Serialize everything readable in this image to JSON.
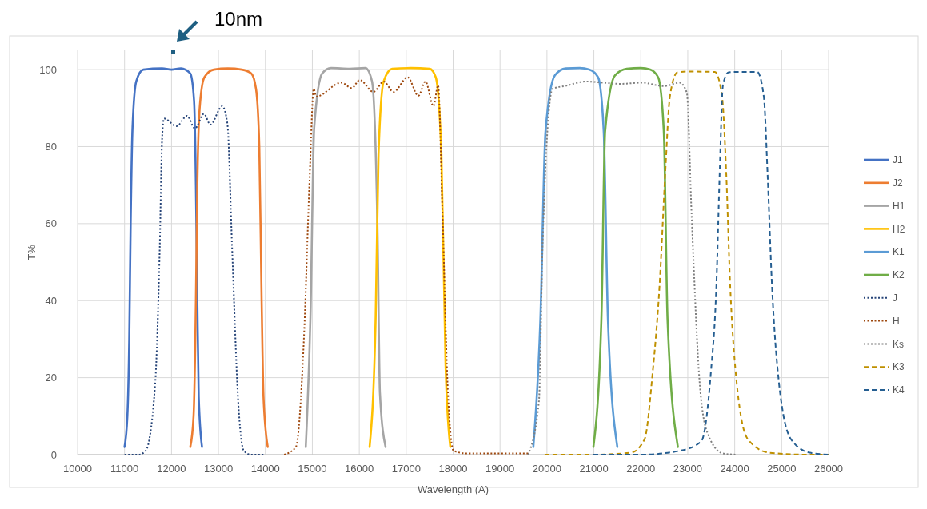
{
  "chart_data": {
    "type": "line",
    "xlabel": "Wavelength (A)",
    "ylabel": "T%",
    "annotations": [
      "10nm"
    ],
    "xlim": [
      10000,
      26000
    ],
    "xticks": [
      10000,
      11000,
      12000,
      13000,
      14000,
      15000,
      16000,
      17000,
      18000,
      19000,
      20000,
      21000,
      22000,
      23000,
      24000,
      25000,
      26000
    ],
    "ylim": [
      0,
      105
    ],
    "yticks": [
      0,
      20,
      40,
      60,
      80,
      100
    ],
    "grid": true,
    "legend": "right",
    "marker": "none",
    "series": [
      {
        "name": "J1",
        "color": "#4472c4",
        "line_style": "solid",
        "x": [
          11000,
          11060,
          11100,
          11130,
          11170,
          11250,
          11400,
          11800,
          12000,
          12200,
          12400,
          12480,
          12520,
          12550,
          12580,
          12650
        ],
        "values": [
          2,
          10,
          30,
          60,
          85,
          97,
          100,
          100.3,
          100,
          100.3,
          99,
          92,
          70,
          40,
          15,
          2
        ]
      },
      {
        "name": "J2",
        "color": "#ed7d31",
        "line_style": "solid",
        "x": [
          12400,
          12470,
          12520,
          12550,
          12600,
          12700,
          12900,
          13200,
          13500,
          13700,
          13800,
          13870,
          13920,
          13960,
          14050
        ],
        "values": [
          2,
          10,
          40,
          70,
          90,
          98,
          100,
          100.3,
          100,
          99,
          95,
          80,
          40,
          15,
          2
        ]
      },
      {
        "name": "H1",
        "color": "#a5a5a5",
        "line_style": "solid",
        "x": [
          14860,
          14960,
          15040,
          15210,
          15400,
          15800,
          16130,
          16270,
          16390,
          16440,
          16560
        ],
        "values": [
          2,
          36,
          85,
          99,
          100.4,
          100.2,
          100.4,
          97,
          57,
          16,
          2
        ]
      },
      {
        "name": "H2",
        "color": "#ffc000",
        "line_style": "solid",
        "x": [
          16220,
          16350,
          16410,
          16520,
          16700,
          17100,
          17500,
          17630,
          17750,
          17840,
          17940
        ],
        "values": [
          2,
          36,
          78,
          97,
          100.2,
          100.4,
          100.2,
          98,
          78,
          23,
          2
        ]
      },
      {
        "name": "K1",
        "color": "#5b9bd5",
        "line_style": "solid",
        "x": [
          19710,
          19860,
          19970,
          20170,
          20400,
          20700,
          20900,
          21090,
          21210,
          21300,
          21500
        ],
        "values": [
          2,
          35,
          84,
          98.5,
          100.3,
          100.4,
          100,
          98,
          84,
          35,
          2
        ]
      },
      {
        "name": "K2",
        "color": "#70ad47",
        "line_style": "solid",
        "x": [
          20990,
          21160,
          21240,
          21450,
          21700,
          22000,
          22200,
          22370,
          22490,
          22570,
          22790
        ],
        "values": [
          2,
          35,
          84,
          98.5,
          100.2,
          100.4,
          100,
          98,
          84,
          35,
          2
        ]
      },
      {
        "name": "J",
        "color": "#264478",
        "line_style": "dotted",
        "x": [
          11000,
          11300,
          11450,
          11650,
          11750,
          11800,
          11840,
          12110,
          12330,
          12500,
          12690,
          12830,
          13080,
          13190,
          13290,
          13420,
          13540,
          13700,
          14000
        ],
        "values": [
          0,
          0,
          1,
          18,
          54,
          82,
          87.3,
          85.3,
          88,
          84.7,
          88.5,
          85.7,
          90.5,
          86,
          54,
          14,
          1,
          0,
          0
        ]
      },
      {
        "name": "H",
        "color": "#9e480e",
        "line_style": "dotted",
        "x": [
          14400,
          14650,
          14820,
          14940,
          15030,
          15080,
          15620,
          15840,
          16010,
          16300,
          16520,
          16730,
          17030,
          17260,
          17410,
          17580,
          17680,
          17770,
          17890,
          18010,
          18300,
          19600
        ],
        "values": [
          0,
          2,
          30,
          71,
          95,
          93,
          96.6,
          95.2,
          97.3,
          94.2,
          96.9,
          94.2,
          98,
          93.2,
          96.9,
          90.5,
          95.9,
          64,
          16,
          1,
          0.3,
          0.3
        ]
      },
      {
        "name": "Ks",
        "color": "#7f7f7f",
        "line_style": "dotted",
        "x": [
          19600,
          19830,
          19910,
          20120,
          20410,
          20820,
          21570,
          22030,
          22490,
          22830,
          22980,
          23080,
          23240,
          23410,
          23750,
          24040
        ],
        "values": [
          0,
          14,
          56,
          95,
          95.8,
          96.9,
          96.3,
          96.6,
          95.7,
          96.6,
          94,
          63,
          21,
          6,
          0.3,
          0
        ]
      },
      {
        "name": "K3",
        "color": "#bf9000",
        "line_style": "dashed",
        "x": [
          19950,
          21000,
          21790,
          22080,
          22250,
          22400,
          22520,
          22620,
          22780,
          23000,
          23580,
          23730,
          23820,
          23900,
          24040,
          24280,
          24740,
          25600,
          26000
        ],
        "values": [
          0,
          0,
          0.5,
          4,
          21,
          44,
          73,
          93,
          99.3,
          99.5,
          99.4,
          93,
          73,
          45,
          19,
          4,
          0.5,
          0,
          0
        ]
      },
      {
        "name": "K4",
        "color": "#255e91",
        "line_style": "dashed",
        "x": [
          20990,
          22000,
          22830,
          23290,
          23490,
          23610,
          23680,
          23750,
          23870,
          24100,
          24480,
          24620,
          24700,
          24790,
          24940,
          25200,
          25600,
          26000
        ],
        "values": [
          0,
          0,
          1,
          3.5,
          21,
          44,
          73,
          96,
          99.3,
          99.4,
          99.4,
          93,
          73,
          45,
          19,
          4,
          0.5,
          0
        ]
      }
    ]
  }
}
